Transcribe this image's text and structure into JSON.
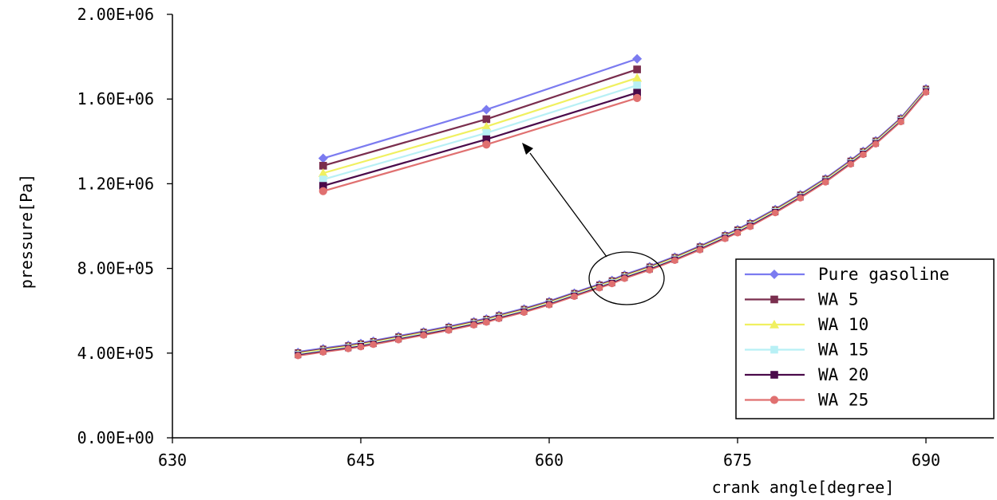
{
  "chart_data": {
    "type": "line",
    "title": "",
    "xlabel": "crank angle[degree]",
    "ylabel": "pressure[Pa]",
    "xlim": [
      630,
      695
    ],
    "ylim": [
      0,
      2000000
    ],
    "x_ticks": [
      630,
      645,
      660,
      675,
      690
    ],
    "x_tick_labels": [
      "630",
      "645",
      "660",
      "675",
      "690"
    ],
    "y_ticks": [
      0,
      400000,
      800000,
      1200000,
      1600000,
      2000000
    ],
    "y_tick_labels": [
      "0.00E+00",
      "4.00E+05",
      "8.00E+05",
      "1.20E+06",
      "1.60E+06",
      "2.00E+06"
    ],
    "grid": false,
    "legend_position": "right",
    "x": [
      640,
      642,
      644,
      645,
      646,
      648,
      650,
      652,
      654,
      655,
      656,
      658,
      660,
      662,
      664,
      665,
      666,
      668,
      670,
      672,
      674,
      675,
      676,
      678,
      680,
      682,
      684,
      685,
      686,
      688,
      690
    ],
    "base_values": [
      395000,
      412000,
      428000,
      437000,
      448000,
      470000,
      492000,
      515000,
      540000,
      553000,
      570000,
      600000,
      635000,
      675000,
      715000,
      735000,
      760000,
      800000,
      845000,
      895000,
      948000,
      975000,
      1005000,
      1070000,
      1140000,
      1215000,
      1300000,
      1345000,
      1395000,
      1500000,
      1640000
    ],
    "series": [
      {
        "name": "Pure gasoline",
        "color": "#7b7bf0",
        "marker": "diamond",
        "offset": 12000
      },
      {
        "name": "WA 5",
        "color": "#7a2e4e",
        "marker": "square",
        "offset": 8000
      },
      {
        "name": "WA 10",
        "color": "#f0f060",
        "marker": "triangle",
        "offset": 4000
      },
      {
        "name": "WA 15",
        "color": "#b8f0f5",
        "marker": "square",
        "offset": 0
      },
      {
        "name": "WA 20",
        "color": "#4a0a4a",
        "marker": "square",
        "offset": -4000
      },
      {
        "name": "WA 25",
        "color": "#e07070",
        "marker": "circle",
        "offset": -8000
      }
    ],
    "inset": {
      "x": [
        642,
        655,
        667
      ],
      "series_values": [
        [
          1320000,
          1550000,
          1790000
        ],
        [
          1285000,
          1505000,
          1740000
        ],
        [
          1250000,
          1470000,
          1700000
        ],
        [
          1220000,
          1440000,
          1665000
        ],
        [
          1190000,
          1410000,
          1630000
        ],
        [
          1165000,
          1385000,
          1605000
        ]
      ]
    }
  }
}
